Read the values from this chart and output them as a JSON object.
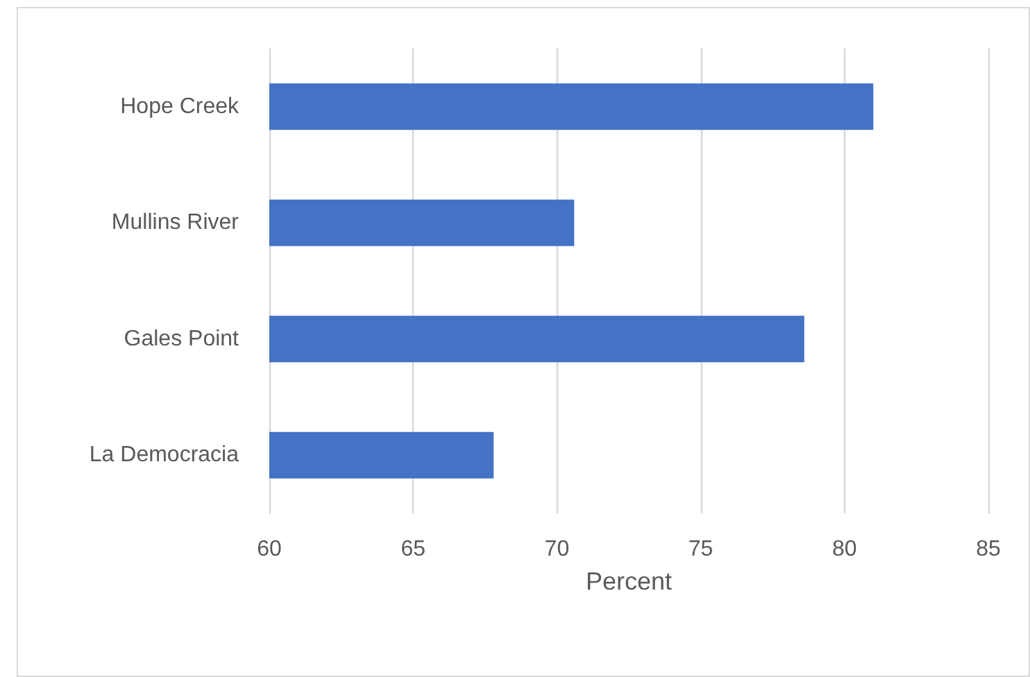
{
  "chart_data": {
    "type": "bar",
    "orientation": "horizontal",
    "xlabel": "Percent",
    "categories": [
      "Hope Creek",
      "Mullins River",
      "Gales Point",
      "La Democracia"
    ],
    "values": [
      81.0,
      70.6,
      78.6,
      67.8
    ],
    "color": "#4472c4",
    "xlim": [
      60,
      85
    ],
    "xticks": [
      60,
      65,
      70,
      75,
      80,
      85
    ],
    "grid": "x"
  }
}
